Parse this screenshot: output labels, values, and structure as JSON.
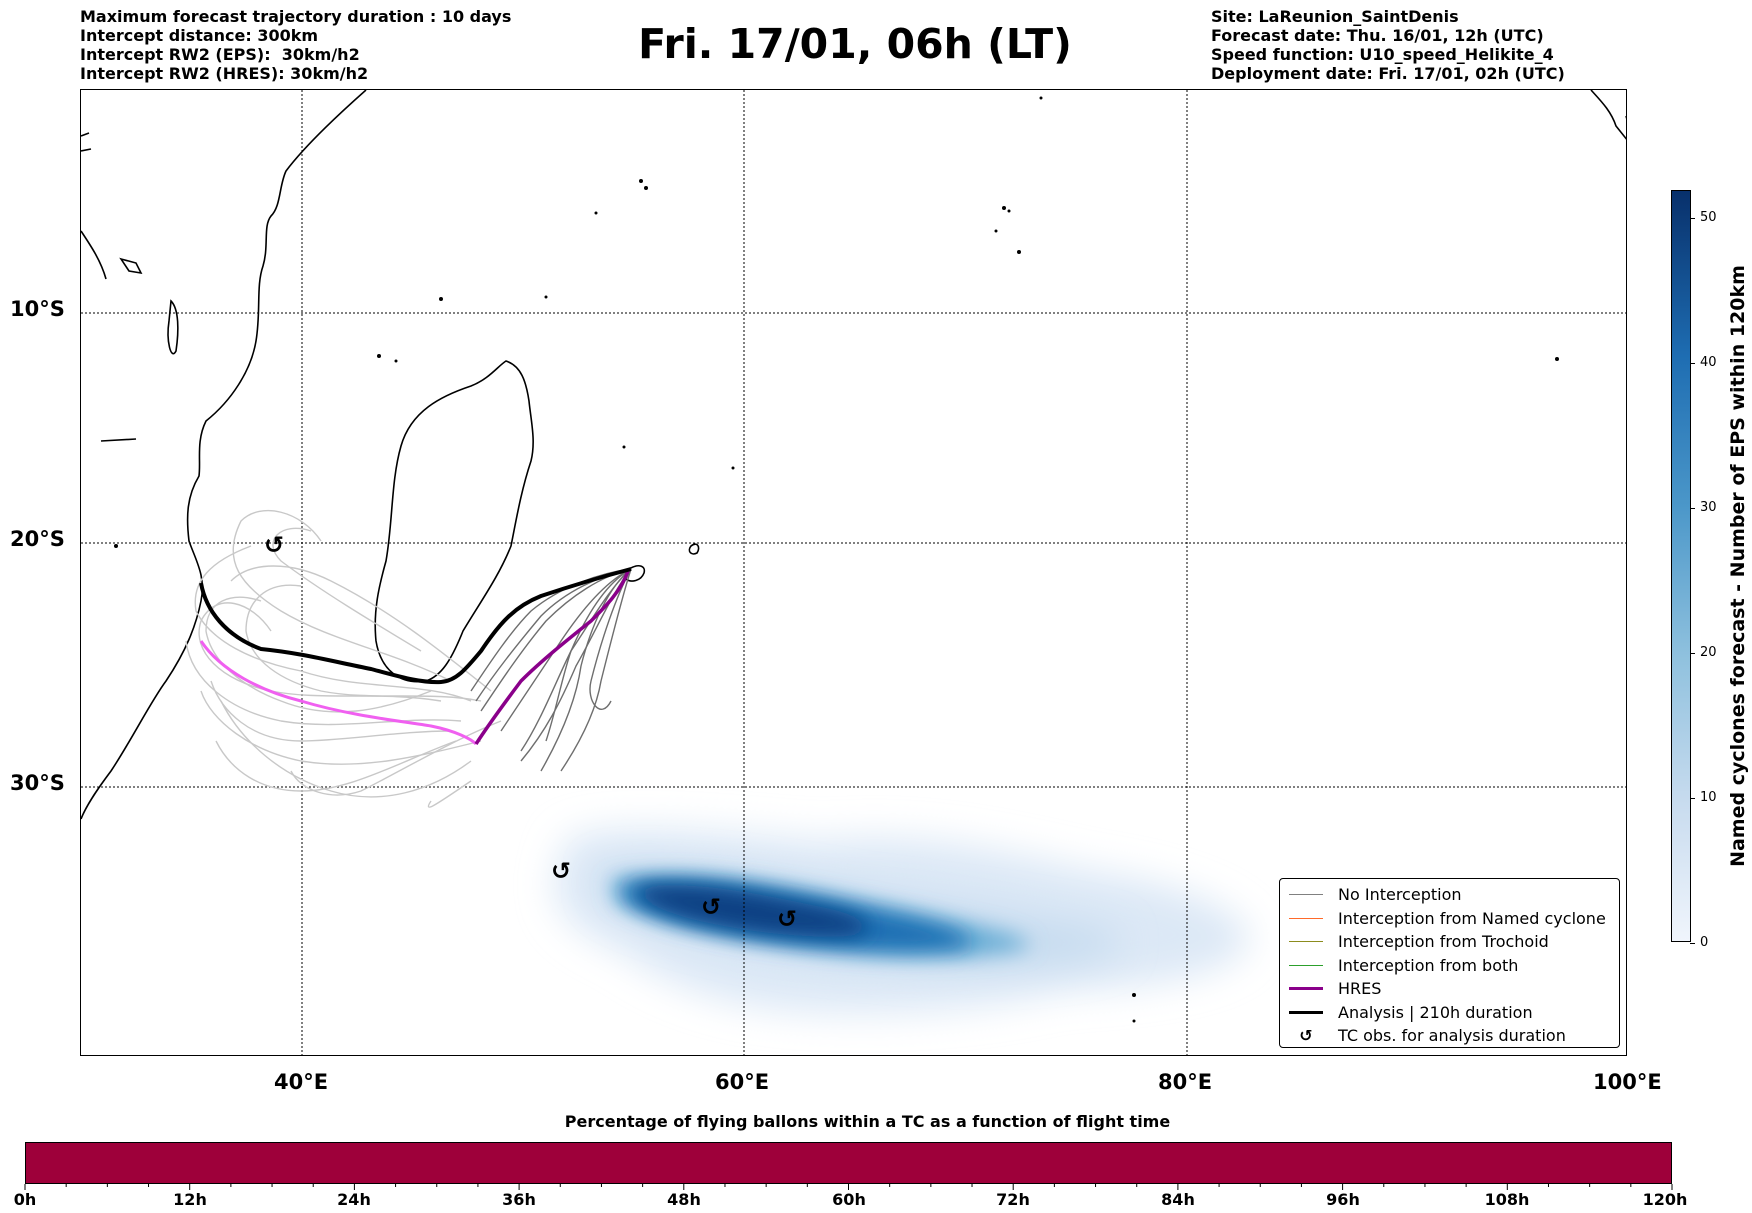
{
  "header": {
    "left_lines": [
      "Maximum forecast trajectory duration : 10 days",
      "Intercept distance: 300km",
      "Intercept RW2 (EPS):  30km/h2",
      "Intercept RW2 (HRES): 30km/h2"
    ],
    "title": "Fri. 17/01, 06h (LT)",
    "right_lines": [
      "Site: LaReunion_SaintDenis",
      "Forecast date: Thu. 16/01, 12h (UTC)",
      "Speed function: U10_speed_Helikite_4",
      "Deployment date: Fri. 17/01, 02h (UTC)"
    ]
  },
  "map": {
    "lat_labels": [
      "10°S",
      "20°S",
      "30°S"
    ],
    "lon_labels": [
      "40°E",
      "60°E",
      "80°E",
      "100°E"
    ],
    "tc_symbol": "↺",
    "colors": {
      "eps_trajectory": "#6e6e6e",
      "eps_trajectory_light": "#c8c8c8",
      "hres": "#8a008a",
      "hres_light": "#f060f0",
      "analysis": "#000000"
    }
  },
  "legend": {
    "items": [
      {
        "label": "No Interception",
        "color": "#808080",
        "kind": "line"
      },
      {
        "label": "Interception from Named cyclone",
        "color": "#ff6a2a",
        "kind": "line"
      },
      {
        "label": "Interception from Trochoid",
        "color": "#8c8c1e",
        "kind": "line"
      },
      {
        "label": "Interception from both",
        "color": "#2ca02c",
        "kind": "line"
      },
      {
        "label": "HRES",
        "color": "#8a008a",
        "kind": "thick"
      },
      {
        "label": "Analysis | 210h duration",
        "color": "#000000",
        "kind": "thick"
      },
      {
        "label": "TC obs. for analysis duration",
        "color": "#000000",
        "kind": "symbol",
        "symbol": "↺"
      }
    ]
  },
  "colorbar": {
    "label": "Named cyclones forecast - Number of EPS within 120km",
    "ticks": [
      "0",
      "10",
      "20",
      "30",
      "40",
      "50"
    ],
    "min": 0,
    "max": 52
  },
  "time_bar": {
    "title": "Percentage of flying ballons within a TC as a function of flight time",
    "labels": [
      "0h",
      "12h",
      "24h",
      "36h",
      "48h",
      "60h",
      "72h",
      "84h",
      "96h",
      "108h",
      "120h"
    ],
    "color": "#9e003a"
  }
}
